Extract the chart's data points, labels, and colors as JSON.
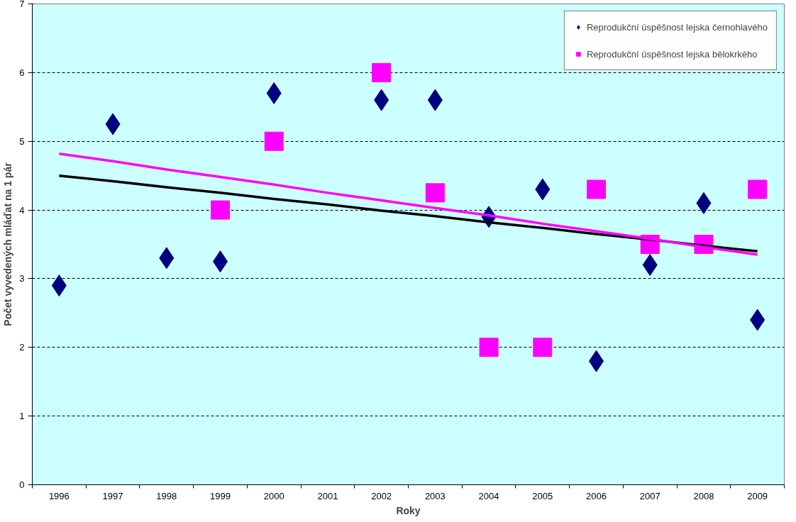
{
  "chart_data": {
    "type": "scatter",
    "xlabel": "Roky",
    "ylabel": "Počet vyvedených mláďat na 1 pár",
    "categories": [
      "1996",
      "1997",
      "1998",
      "1999",
      "2000",
      "2001",
      "2002",
      "2003",
      "2004",
      "2005",
      "2006",
      "2007",
      "2008",
      "2009"
    ],
    "ylim": [
      0,
      7
    ],
    "yticks": [
      0,
      1,
      2,
      3,
      4,
      5,
      6,
      7
    ],
    "grid": "y",
    "legend": "top right",
    "series": [
      {
        "name": "Reprodukční úspěšnost lejska černohlavého",
        "color": "#000080",
        "marker": "diamond",
        "values": [
          2.9,
          5.25,
          3.3,
          3.25,
          5.7,
          null,
          5.6,
          5.6,
          3.9,
          4.3,
          1.8,
          3.2,
          4.1,
          2.4
        ]
      },
      {
        "name": "Reprodukční úspěšnost lejska bělokrkého",
        "color": "#ff00ff",
        "marker": "square",
        "values": [
          null,
          null,
          null,
          4.0,
          5.0,
          null,
          6.0,
          4.25,
          2.0,
          2.0,
          4.3,
          3.5,
          3.5,
          4.3
        ]
      },
      {
        "type": "line",
        "color": "#000000",
        "values": [
          4.5,
          4.42,
          4.33,
          4.25,
          4.16,
          4.08,
          3.99,
          3.91,
          3.82,
          3.74,
          3.65,
          3.57,
          3.48,
          3.4
        ]
      },
      {
        "type": "line",
        "color": "#ff00ff",
        "values": [
          4.82,
          4.71,
          4.59,
          4.48,
          4.37,
          4.25,
          4.14,
          4.03,
          3.92,
          3.8,
          3.69,
          3.58,
          3.46,
          3.35
        ]
      }
    ]
  }
}
